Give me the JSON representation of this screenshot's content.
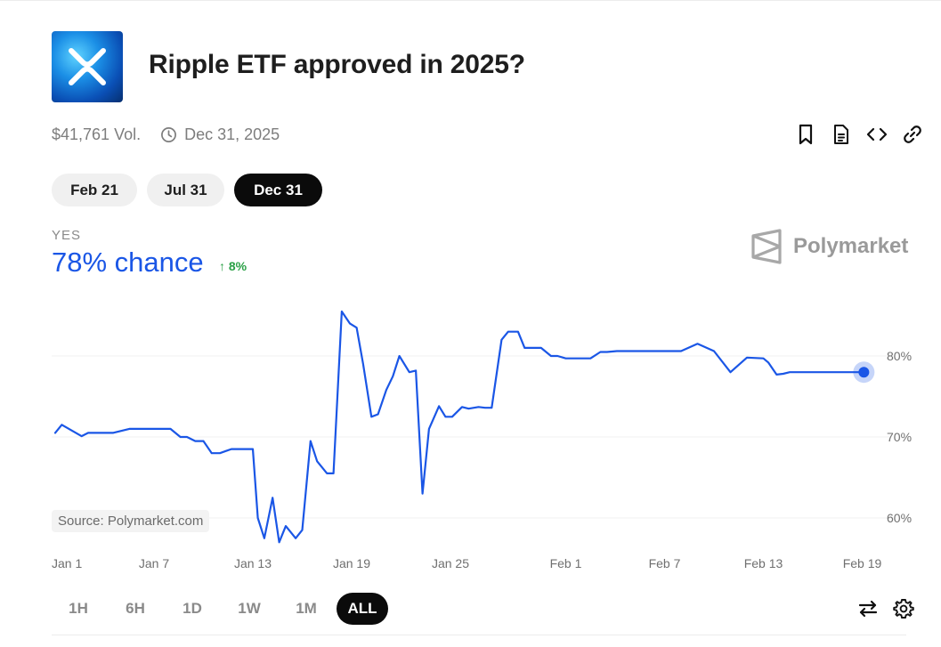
{
  "market": {
    "title": "Ripple ETF approved in 2025?",
    "volume": "$41,761 Vol.",
    "end_date": "Dec 31, 2025"
  },
  "icons": {
    "logo": "xrp-logo-icon",
    "clock": "clock-icon",
    "bookmark": "bookmark-icon",
    "document": "document-icon",
    "embed": "code-embed-icon",
    "link": "link-icon",
    "swap": "swap-arrows-icon",
    "settings": "gear-icon",
    "brand": "polymarket-logo-icon"
  },
  "date_pills": [
    {
      "label": "Feb 21",
      "active": false
    },
    {
      "label": "Jul 31",
      "active": false
    },
    {
      "label": "Dec 31",
      "active": true
    }
  ],
  "outcome": {
    "label": "YES",
    "chance": "78% chance",
    "change": "8%"
  },
  "brand_name": "Polymarket",
  "source": "Source: Polymarket.com",
  "time_ranges": [
    {
      "label": "1H",
      "active": false
    },
    {
      "label": "6H",
      "active": false
    },
    {
      "label": "1D",
      "active": false
    },
    {
      "label": "1W",
      "active": false
    },
    {
      "label": "1M",
      "active": false
    },
    {
      "label": "ALL",
      "active": true
    }
  ],
  "colors": {
    "accent": "#1a56e6",
    "positive": "#2aa046"
  },
  "chart_data": {
    "type": "line",
    "title": "",
    "xlabel": "",
    "ylabel": "",
    "ylim": [
      56,
      86
    ],
    "y_ticks": [
      60,
      70,
      80
    ],
    "y_tick_labels": [
      "60%",
      "70%",
      "80%"
    ],
    "x_tick_labels": [
      {
        "day": 0,
        "label": "Jan 1"
      },
      {
        "day": 6,
        "label": "Jan 7"
      },
      {
        "day": 12,
        "label": "Jan 13"
      },
      {
        "day": 18,
        "label": "Jan 19"
      },
      {
        "day": 24,
        "label": "Jan 25"
      },
      {
        "day": 31,
        "label": "Feb 1"
      },
      {
        "day": 37,
        "label": "Feb 7"
      },
      {
        "day": 43,
        "label": "Feb 13"
      },
      {
        "day": 49,
        "label": "Feb 19"
      }
    ],
    "series": [
      {
        "name": "Yes",
        "x": [
          0,
          0.4,
          1.0,
          1.6,
          2.0,
          2.6,
          3.5,
          4.5,
          5.0,
          6.0,
          7.0,
          7.6,
          8.0,
          8.5,
          9.0,
          9.5,
          10.0,
          10.7,
          11.2,
          12.0,
          12.3,
          12.7,
          13.2,
          13.6,
          14.0,
          14.6,
          15.0,
          15.5,
          15.9,
          16.5,
          16.9,
          17.4,
          17.9,
          18.3,
          18.7,
          19.2,
          19.6,
          20.1,
          20.5,
          20.9,
          21.5,
          21.9,
          22.3,
          22.7,
          23.3,
          23.7,
          24.1,
          24.7,
          25.1,
          25.7,
          26.1,
          26.5,
          27.1,
          27.5,
          28.1,
          28.5,
          28.9,
          29.5,
          30.1,
          30.5,
          31.0,
          31.9,
          32.5,
          33.1,
          33.5,
          34.1,
          35.0,
          36.0,
          36.7,
          37.2,
          38.0,
          39.0,
          40.0,
          41.0,
          42.0,
          43.0,
          43.3,
          43.8,
          44.2,
          44.6,
          45.2,
          45.8,
          46.2,
          46.6,
          47.2,
          47.8,
          48.2,
          48.7,
          49.1
        ],
        "values": [
          70.5,
          71.5,
          70.8,
          70.1,
          70.5,
          70.5,
          70.5,
          71.0,
          71.0,
          71.0,
          71.0,
          70.0,
          70.0,
          69.5,
          69.5,
          68.0,
          68.0,
          68.5,
          68.5,
          68.5,
          60.0,
          57.5,
          62.5,
          57.0,
          59.0,
          57.5,
          58.5,
          69.5,
          67.0,
          65.5,
          65.5,
          85.5,
          84.0,
          83.5,
          79.0,
          72.5,
          72.8,
          75.8,
          77.5,
          80.0,
          78.0,
          78.2,
          63.0,
          71.0,
          73.8,
          72.5,
          72.5,
          73.7,
          73.5,
          73.7,
          73.6,
          73.6,
          82.0,
          83.0,
          83.0,
          81.0,
          81.0,
          81.0,
          80.0,
          80.0,
          79.7,
          79.7,
          79.7,
          80.5,
          80.5,
          80.6,
          80.6,
          80.6,
          80.6,
          80.6,
          80.6,
          81.5,
          80.6,
          78.0,
          79.8,
          79.7,
          79.2,
          77.7,
          77.8,
          78.0,
          78.0,
          78.0,
          78.0,
          78.0,
          78.0,
          78.0,
          78.0,
          78.0,
          78.0
        ]
      }
    ]
  }
}
